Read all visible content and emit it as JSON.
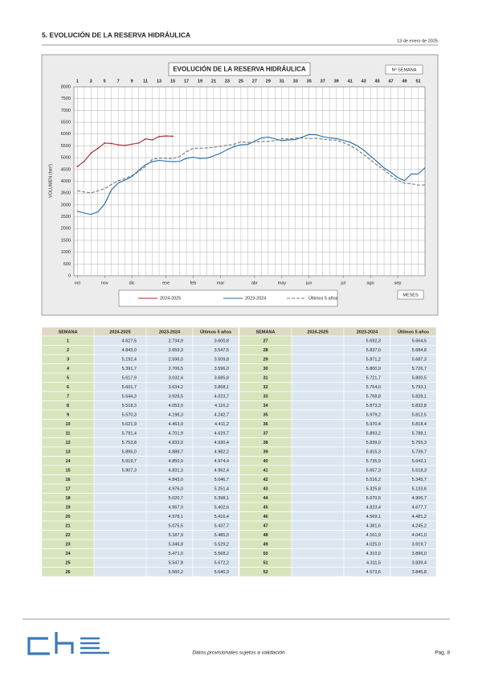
{
  "header": {
    "title": "5. EVOLUCIÓN DE LA RESERVA HIDRÁULICA",
    "date": "13 de enero de 2025"
  },
  "chart_data": {
    "type": "line",
    "title": "EVOLUCIÓN DE LA RESERVA HIDRÁULICA",
    "x_label": "Nº SEMANA",
    "x2_label": "MESES",
    "y_label": "VOLUMEN (hm³)",
    "x": [
      1,
      2,
      3,
      4,
      5,
      6,
      7,
      8,
      9,
      10,
      11,
      12,
      13,
      14,
      15,
      16,
      17,
      18,
      19,
      20,
      21,
      22,
      23,
      24,
      25,
      26,
      27,
      28,
      29,
      30,
      31,
      32,
      33,
      34,
      35,
      36,
      37,
      38,
      39,
      40,
      41,
      42,
      43,
      44,
      45,
      46,
      47,
      48,
      49,
      50,
      51,
      52
    ],
    "xlim": [
      0.5,
      52
    ],
    "xticks": [
      1,
      3,
      5,
      7,
      9,
      11,
      13,
      15,
      17,
      19,
      21,
      23,
      25,
      27,
      29,
      31,
      33,
      35,
      37,
      39,
      41,
      43,
      45,
      47,
      49,
      51
    ],
    "month_ticks": [
      {
        "value": 1,
        "label": "oct"
      },
      {
        "value": 5,
        "label": "nov"
      },
      {
        "value": 9,
        "label": "dic"
      },
      {
        "value": 14,
        "label": "ene"
      },
      {
        "value": 18,
        "label": "feb"
      },
      {
        "value": 22,
        "label": "mar"
      },
      {
        "value": 27,
        "label": "abr"
      },
      {
        "value": 31,
        "label": "may"
      },
      {
        "value": 35,
        "label": "jun"
      },
      {
        "value": 40,
        "label": "jul"
      },
      {
        "value": 44,
        "label": "ago"
      },
      {
        "value": 48,
        "label": "sep"
      }
    ],
    "ylim": [
      0,
      8000
    ],
    "yticks": [
      0,
      500,
      1000,
      1500,
      2000,
      2500,
      3000,
      3500,
      4000,
      4500,
      5000,
      5500,
      6000,
      6500,
      7000,
      7500,
      8000
    ],
    "grid": true,
    "series": [
      {
        "name": "2024-2025",
        "color": "#b0262b",
        "dashed": false,
        "markers": true,
        "values": [
          4627.5,
          4843.0,
          5192.4,
          5391.7,
          5617.9,
          5601.7,
          5544.3,
          5518.3,
          5570.3,
          5621.9,
          5791.4,
          5753.8,
          5895.0,
          5919.7,
          5907.3,
          null,
          null,
          null,
          null,
          null,
          null,
          null,
          null,
          null,
          null,
          null,
          null,
          null,
          null,
          null,
          null,
          null,
          null,
          null,
          null,
          null,
          null,
          null,
          null,
          null,
          null,
          null,
          null,
          null,
          null,
          null,
          null,
          null,
          null,
          null,
          null,
          null
        ]
      },
      {
        "name": "2023-2024",
        "color": "#1f6aa5",
        "dashed": false,
        "markers": false,
        "values": [
          2734.9,
          2659.3,
          2596.0,
          2706.5,
          3032.4,
          3634.2,
          3928.5,
          4053.9,
          4198.3,
          4463.9,
          4701.9,
          4833.0,
          4888.7,
          4850.9,
          4831.3,
          4843.0,
          4976.0,
          5020.7,
          4967.0,
          4978.1,
          5075.5,
          5187.9,
          5346.8,
          5471.0,
          5547.8,
          5560.2,
          5692.3,
          5837.0,
          5871.2,
          5800.9,
          5721.7,
          5754.0,
          5768.8,
          5873.3,
          5979.2,
          5970.4,
          5893.2,
          5839.0,
          5815.3,
          5735.9,
          5657.3,
          5516.2,
          5325.8,
          5070.5,
          4823.4,
          4569.1,
          4381.6,
          4161.9,
          4025.0,
          4310.0,
          4311.5,
          4573.6
        ]
      },
      {
        "name": "Últimos 5 años",
        "color": "#777777",
        "dashed": true,
        "markers": false,
        "values": [
          3600.8,
          3547.5,
          3509.8,
          3596.0,
          3685.8,
          3868.1,
          4023.7,
          4116.2,
          4242.7,
          4411.2,
          4629.7,
          4930.4,
          4982.2,
          4974.4,
          4962.4,
          5046.7,
          5251.4,
          5398.1,
          5402.6,
          5416.4,
          5437.7,
          5485.0,
          5529.2,
          5568.2,
          5672.2,
          5640.3,
          5664.5,
          5684.8,
          5687.3,
          5726.7,
          5800.5,
          5793.1,
          5828.1,
          5832.8,
          5812.5,
          5818.4,
          5788.1,
          5755.3,
          5739.7,
          5643.1,
          5518.3,
          5345.7,
          5133.6,
          4906.7,
          4677.7,
          4481.2,
          4245.2,
          4041.0,
          3919.7,
          3896.0,
          3839.4,
          3845.8
        ]
      }
    ]
  },
  "table": {
    "headers": [
      "SEMANA",
      "2024-2025",
      "2023-2024",
      "Últimos 5 años"
    ],
    "rows": [
      [
        "1",
        "4.627,5",
        "2.734,9",
        "3.600,8"
      ],
      [
        "2",
        "4.843,0",
        "2.659,3",
        "3.547,5"
      ],
      [
        "3",
        "5.192,4",
        "2.596,0",
        "3.509,8"
      ],
      [
        "4",
        "5.391,7",
        "2.706,5",
        "3.596,0"
      ],
      [
        "5",
        "5.617,9",
        "3.032,4",
        "3.685,8"
      ],
      [
        "6",
        "5.601,7",
        "3.634,2",
        "3.868,1"
      ],
      [
        "7",
        "5.544,3",
        "3.928,5",
        "4.023,7"
      ],
      [
        "8",
        "5.518,3",
        "4.053,9",
        "4.116,2"
      ],
      [
        "9",
        "5.570,3",
        "4.198,3",
        "4.242,7"
      ],
      [
        "10",
        "5.621,9",
        "4.463,9",
        "4.411,2"
      ],
      [
        "11",
        "5.791,4",
        "4.701,9",
        "4.629,7"
      ],
      [
        "12",
        "5.753,8",
        "4.833,0",
        "4.930,4"
      ],
      [
        "13",
        "5.895,0",
        "4.888,7",
        "4.982,2"
      ],
      [
        "14",
        "5.919,7",
        "4.850,9",
        "4.974,4"
      ],
      [
        "15",
        "5.907,3",
        "4.831,3",
        "4.962,4"
      ],
      [
        "16",
        null,
        "4.843,0",
        "5.046,7"
      ],
      [
        "17",
        null,
        "4.976,0",
        "5.251,4"
      ],
      [
        "18",
        null,
        "5.020,7",
        "5.398,1"
      ],
      [
        "19",
        null,
        "4.967,0",
        "5.402,6"
      ],
      [
        "20",
        null,
        "4.978,1",
        "5.416,4"
      ],
      [
        "21",
        null,
        "5.075,5",
        "5.437,7"
      ],
      [
        "22",
        null,
        "5.187,9",
        "5.485,0"
      ],
      [
        "23",
        null,
        "5.346,8",
        "5.529,2"
      ],
      [
        "24",
        null,
        "5.471,0",
        "5.568,2"
      ],
      [
        "25",
        null,
        "5.547,8",
        "5.672,2"
      ],
      [
        "26",
        null,
        "5.560,2",
        "5.640,3"
      ],
      [
        "27",
        null,
        "5.692,3",
        "5.664,5"
      ],
      [
        "28",
        null,
        "5.837,0",
        "5.684,8"
      ],
      [
        "29",
        null,
        "5.871,2",
        "5.687,3"
      ],
      [
        "30",
        null,
        "5.800,9",
        "5.726,7"
      ],
      [
        "31",
        null,
        "5.721,7",
        "5.800,5"
      ],
      [
        "32",
        null,
        "5.754,0",
        "5.793,1"
      ],
      [
        "33",
        null,
        "5.768,8",
        "5.828,1"
      ],
      [
        "34",
        null,
        "5.873,3",
        "5.832,8"
      ],
      [
        "35",
        null,
        "5.979,2",
        "5.812,5"
      ],
      [
        "36",
        null,
        "5.970,4",
        "5.818,4"
      ],
      [
        "37",
        null,
        "5.893,2",
        "5.788,1"
      ],
      [
        "38",
        null,
        "5.839,0",
        "5.755,3"
      ],
      [
        "39",
        null,
        "5.815,3",
        "5.739,7"
      ],
      [
        "40",
        null,
        "5.735,9",
        "5.643,1"
      ],
      [
        "41",
        null,
        "5.657,3",
        "5.518,3"
      ],
      [
        "42",
        null,
        "5.516,2",
        "5.345,7"
      ],
      [
        "43",
        null,
        "5.325,8",
        "5.133,6"
      ],
      [
        "44",
        null,
        "5.070,5",
        "4.906,7"
      ],
      [
        "45",
        null,
        "4.823,4",
        "4.677,7"
      ],
      [
        "46",
        null,
        "4.569,1",
        "4.481,2"
      ],
      [
        "47",
        null,
        "4.381,6",
        "4.245,2"
      ],
      [
        "48",
        null,
        "4.161,9",
        "4.041,0"
      ],
      [
        "49",
        null,
        "4.025,0",
        "3.919,7"
      ],
      [
        "50",
        null,
        "4.310,0",
        "3.896,0"
      ],
      [
        "51",
        null,
        "4.311,5",
        "3.839,4"
      ],
      [
        "52",
        null,
        "4.573,6",
        "3.845,8"
      ]
    ]
  },
  "footer": {
    "note": "Datos provisionales sujetos a validación",
    "page": "Pag. 8"
  }
}
